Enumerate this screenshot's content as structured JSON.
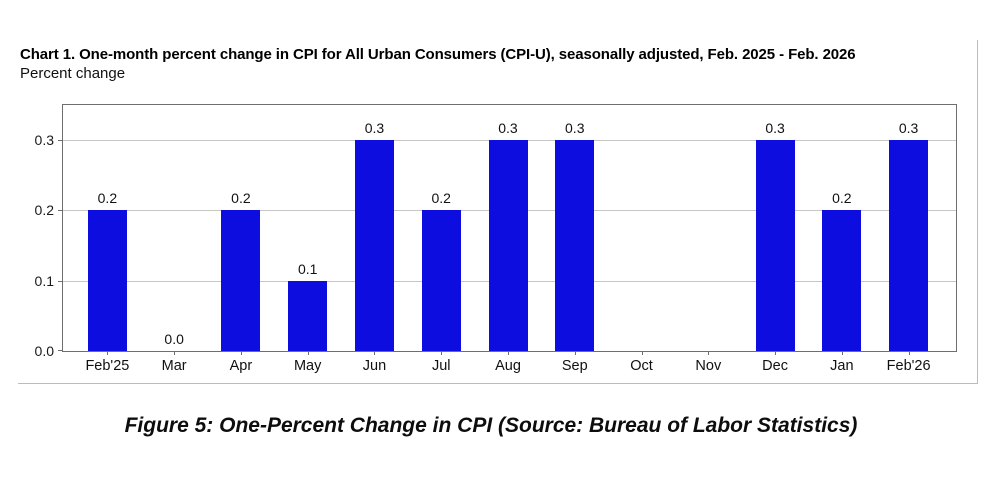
{
  "chart_data": {
    "type": "bar",
    "title": "Chart 1. One-month percent change in CPI for All Urban Consumers (CPI-U), seasonally adjusted, Feb. 2025 - Feb. 2026",
    "subtitle": "Percent change",
    "categories": [
      "Feb'25",
      "Mar",
      "Apr",
      "May",
      "Jun",
      "Jul",
      "Aug",
      "Sep",
      "Oct",
      "Nov",
      "Dec",
      "Jan",
      "Feb'26"
    ],
    "values": [
      0.2,
      0.0,
      0.2,
      0.1,
      0.3,
      0.2,
      0.3,
      0.3,
      null,
      null,
      0.3,
      0.2,
      0.3
    ],
    "yticks": [
      0.0,
      0.1,
      0.2,
      0.3
    ],
    "ytick_labels": [
      "0.0",
      "0.1",
      "0.2",
      "0.3"
    ],
    "ylim": [
      0,
      0.35
    ],
    "grid": true,
    "legend": false,
    "value_label_decimals": 1
  },
  "caption": "Figure 5: One-Percent Change in CPI (Source: Bureau of Labor Statistics)",
  "colors": {
    "bar": "#0d0de0",
    "gridline": "#c6c6c6",
    "plot_border": "#6e6e6e",
    "frame_border": "#bcbcbc",
    "text": "#000000"
  }
}
